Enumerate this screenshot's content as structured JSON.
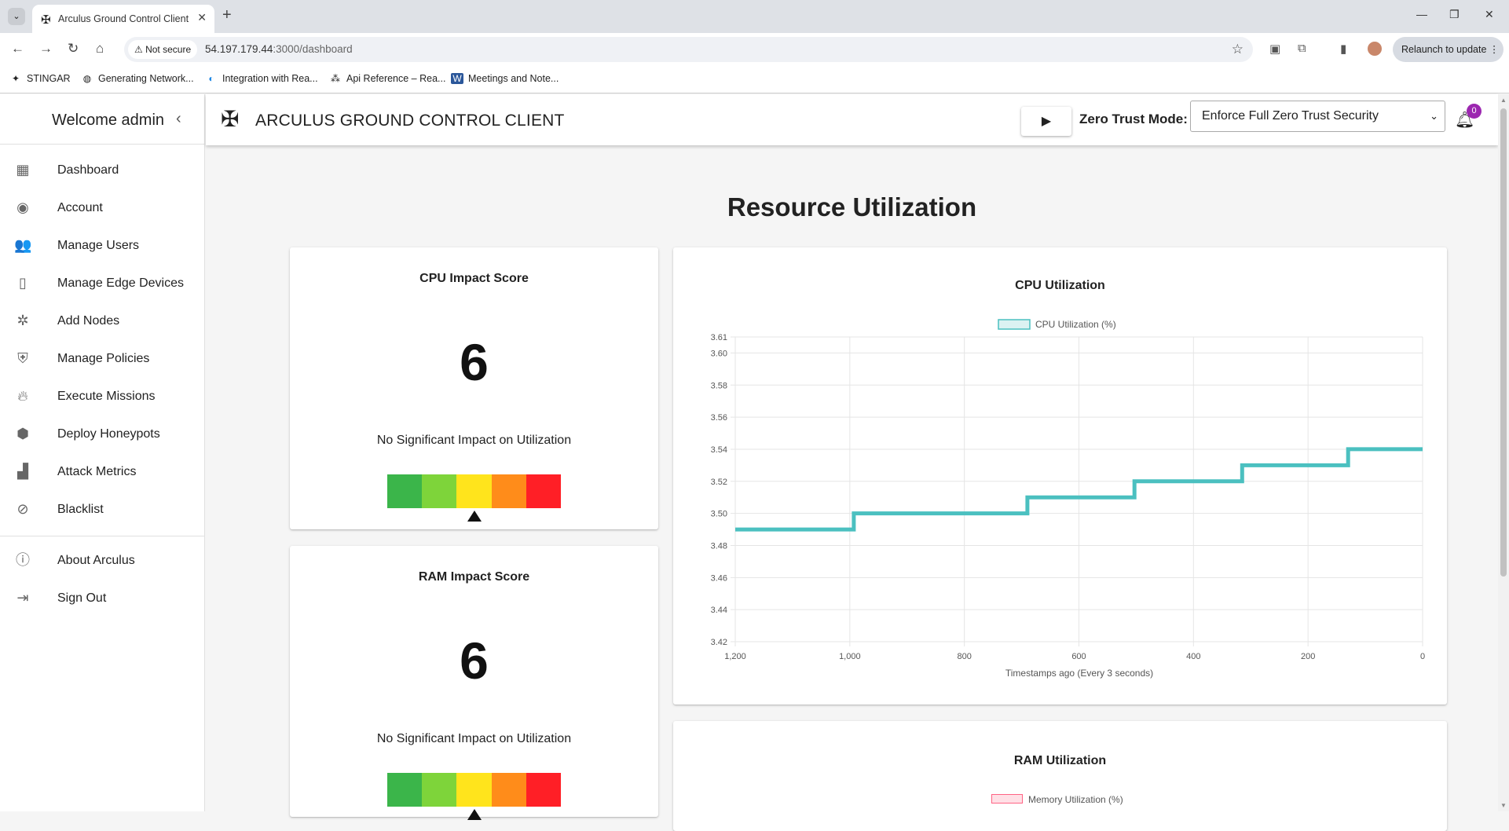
{
  "browser": {
    "tab_title": "Arculus Ground Control Client",
    "security_chip": "Not secure",
    "url_host": "54.197.179.44",
    "url_path": ":3000/dashboard",
    "relaunch_label": "Relaunch to update",
    "bookmarks": [
      {
        "label": "STINGAR",
        "icon": "stingar-icon"
      },
      {
        "label": "Generating Network...",
        "icon": "globe-icon"
      },
      {
        "label": "Integration with Rea...",
        "icon": "integration-icon"
      },
      {
        "label": "Api Reference – Rea...",
        "icon": "api-icon"
      },
      {
        "label": "Meetings and Note...",
        "icon": "word-icon"
      }
    ]
  },
  "sidebar": {
    "welcome": "Welcome admin",
    "items": [
      {
        "label": "Dashboard",
        "icon": "dashboard-icon"
      },
      {
        "label": "Account",
        "icon": "account-icon"
      },
      {
        "label": "Manage Users",
        "icon": "users-icon"
      },
      {
        "label": "Manage Edge Devices",
        "icon": "edge-device-icon"
      },
      {
        "label": "Add Nodes",
        "icon": "nodes-icon"
      },
      {
        "label": "Manage Policies",
        "icon": "shield-icon"
      },
      {
        "label": "Execute Missions",
        "icon": "fire-icon"
      },
      {
        "label": "Deploy Honeypots",
        "icon": "honeypot-icon"
      },
      {
        "label": "Attack Metrics",
        "icon": "bar-chart-icon"
      },
      {
        "label": "Blacklist",
        "icon": "blocked-icon"
      }
    ],
    "bottom_items": [
      {
        "label": "About Arculus",
        "icon": "info-icon"
      },
      {
        "label": "Sign Out",
        "icon": "sign-out-icon"
      }
    ]
  },
  "header": {
    "app_title": "ARCULUS GROUND CONTROL CLIENT",
    "zero_trust_label": "Zero Trust Mode:",
    "zero_trust_value": "Enforce Full Zero Trust Security",
    "notification_count": "0"
  },
  "main": {
    "page_title": "Resource Utilization",
    "cpu_card": {
      "title": "CPU Impact Score",
      "score": "6",
      "impact_text": "No Significant Impact on Utilization"
    },
    "ram_card": {
      "title": "RAM Impact Score",
      "score": "6",
      "impact_text": "No Significant Impact on Utilization"
    },
    "gauge_colors": [
      "#3bb54a",
      "#7ed43a",
      "#ffe41c",
      "#ff8c1a",
      "#ff1f26"
    ],
    "ram_chart": {
      "title": "RAM Utilization",
      "legend": "Memory Utilization (%)",
      "legend_color": "#ff6384"
    }
  },
  "chart_data": {
    "type": "line",
    "title": "CPU Utilization",
    "xlabel": "Timestamps ago (Every 3 seconds)",
    "ylabel": "",
    "legend_position": "top",
    "grid": true,
    "stepped": true,
    "color": "#4bc0c0",
    "xlim": [
      1200,
      0
    ],
    "ylim": [
      3.42,
      3.61
    ],
    "x_ticks": [
      "1,200",
      "1,000",
      "800",
      "600",
      "400",
      "200",
      "0"
    ],
    "y_ticks": [
      "3.61",
      "3.60",
      "3.58",
      "3.56",
      "3.54",
      "3.52",
      "3.50",
      "3.48",
      "3.46",
      "3.44",
      "3.42"
    ],
    "series": [
      {
        "name": "CPU Utilization (%)",
        "points": [
          [
            1200,
            3.49
          ],
          [
            993,
            3.49
          ],
          [
            993,
            3.5
          ],
          [
            690,
            3.5
          ],
          [
            690,
            3.51
          ],
          [
            503,
            3.51
          ],
          [
            503,
            3.52
          ],
          [
            315,
            3.52
          ],
          [
            315,
            3.53
          ],
          [
            130,
            3.53
          ],
          [
            130,
            3.54
          ],
          [
            0,
            3.54
          ]
        ]
      }
    ]
  }
}
